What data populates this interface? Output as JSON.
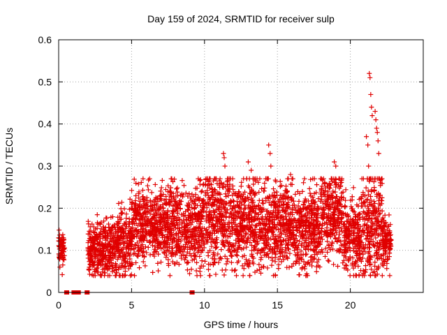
{
  "chart_data": {
    "type": "scatter",
    "title": "Day 159 of 2024, SRMTID for receiver sulp",
    "xlabel": "GPS time / hours",
    "ylabel": "SRMTID / TECUs",
    "xlim": [
      0,
      25
    ],
    "ylim": [
      0,
      0.6
    ],
    "xticks": [
      0,
      5,
      10,
      15,
      20
    ],
    "xtick_labels": [
      "0",
      "5",
      "10",
      "15",
      "20"
    ],
    "yticks": [
      0,
      0.1,
      0.2,
      0.3,
      0.4,
      0.5,
      0.6
    ],
    "ytick_labels": [
      "0",
      "0.1",
      "0.2",
      "0.3",
      "0.4",
      "0.5",
      "0.6"
    ],
    "grid": true,
    "marker": "+",
    "color": "#e00000",
    "zero_markers_x": [
      0.5,
      0.6,
      1.0,
      1.1,
      1.3,
      1.4,
      1.9,
      2.0,
      9.1,
      9.2
    ],
    "segments": [
      {
        "x_start": 0.0,
        "x_end": 0.4,
        "base": 0.1,
        "spread": 0.025
      },
      {
        "x_start": 2.0,
        "x_end": 2.6,
        "base": 0.1,
        "spread": 0.03
      },
      {
        "x_start": 2.6,
        "x_end": 4.0,
        "base": 0.1,
        "spread": 0.035
      },
      {
        "x_start": 4.0,
        "x_end": 5.0,
        "base": 0.12,
        "spread": 0.04
      },
      {
        "x_start": 5.0,
        "x_end": 7.5,
        "base": 0.16,
        "spread": 0.045
      },
      {
        "x_start": 7.5,
        "x_end": 10.0,
        "base": 0.16,
        "spread": 0.05
      },
      {
        "x_start": 10.0,
        "x_end": 12.0,
        "base": 0.17,
        "spread": 0.06
      },
      {
        "x_start": 12.0,
        "x_end": 14.0,
        "base": 0.16,
        "spread": 0.055
      },
      {
        "x_start": 14.0,
        "x_end": 16.0,
        "base": 0.16,
        "spread": 0.05
      },
      {
        "x_start": 16.0,
        "x_end": 18.0,
        "base": 0.15,
        "spread": 0.05
      },
      {
        "x_start": 18.0,
        "x_end": 19.5,
        "base": 0.19,
        "spread": 0.05
      },
      {
        "x_start": 19.5,
        "x_end": 20.7,
        "base": 0.13,
        "spread": 0.045
      },
      {
        "x_start": 20.7,
        "x_end": 22.2,
        "base": 0.16,
        "spread": 0.07
      },
      {
        "x_start": 22.2,
        "x_end": 22.8,
        "base": 0.12,
        "spread": 0.03
      }
    ],
    "peaks": [
      {
        "x": 11.3,
        "y": 0.33
      },
      {
        "x": 11.35,
        "y": 0.32
      },
      {
        "x": 11.4,
        "y": 0.3
      },
      {
        "x": 13.0,
        "y": 0.31
      },
      {
        "x": 13.2,
        "y": 0.29
      },
      {
        "x": 14.4,
        "y": 0.35
      },
      {
        "x": 14.5,
        "y": 0.33
      },
      {
        "x": 14.55,
        "y": 0.3
      },
      {
        "x": 15.9,
        "y": 0.28
      },
      {
        "x": 16.0,
        "y": 0.27
      },
      {
        "x": 18.9,
        "y": 0.31
      },
      {
        "x": 19.0,
        "y": 0.3
      },
      {
        "x": 21.3,
        "y": 0.52
      },
      {
        "x": 21.35,
        "y": 0.51
      },
      {
        "x": 21.4,
        "y": 0.47
      },
      {
        "x": 21.45,
        "y": 0.44
      },
      {
        "x": 21.5,
        "y": 0.42
      },
      {
        "x": 21.7,
        "y": 0.43
      },
      {
        "x": 21.75,
        "y": 0.41
      },
      {
        "x": 21.8,
        "y": 0.39
      },
      {
        "x": 21.85,
        "y": 0.38
      },
      {
        "x": 21.1,
        "y": 0.37
      },
      {
        "x": 21.9,
        "y": 0.36
      },
      {
        "x": 21.2,
        "y": 0.35
      },
      {
        "x": 21.95,
        "y": 0.33
      },
      {
        "x": 21.25,
        "y": 0.3
      }
    ]
  }
}
